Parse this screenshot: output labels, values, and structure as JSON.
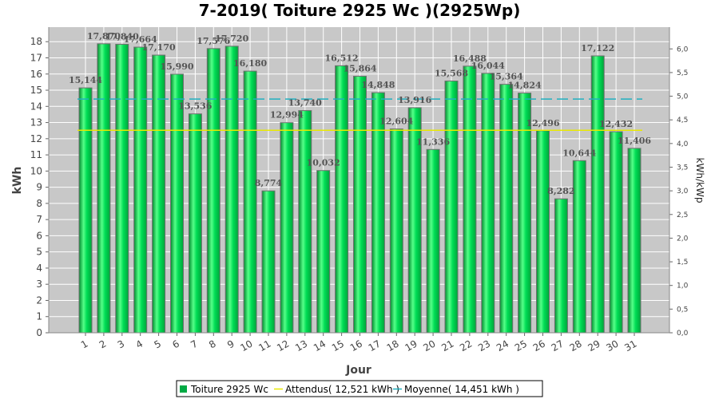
{
  "chart_data": {
    "type": "bar",
    "title": "7-2019( Toiture 2925 Wc )(2925Wp)",
    "xlabel": "Jour",
    "ylabel": "kWh",
    "ylabel_right": "kWh/kWp",
    "categories": [
      "1",
      "2",
      "3",
      "4",
      "5",
      "6",
      "7",
      "8",
      "9",
      "10",
      "11",
      "12",
      "13",
      "14",
      "15",
      "16",
      "17",
      "18",
      "19",
      "20",
      "21",
      "22",
      "23",
      "24",
      "25",
      "26",
      "27",
      "28",
      "29",
      "30",
      "31"
    ],
    "series": [
      {
        "name": "Toiture 2925 Wc",
        "color": "#00cc44",
        "values": [
          15.144,
          17.87,
          17.84,
          17.664,
          17.17,
          15.99,
          13.536,
          17.576,
          17.72,
          16.18,
          8.774,
          12.994,
          13.74,
          10.032,
          16.512,
          15.864,
          14.848,
          12.604,
          13.916,
          11.336,
          15.568,
          16.488,
          16.044,
          15.364,
          14.824,
          12.496,
          8.282,
          10.644,
          17.122,
          12.432,
          11.406
        ]
      }
    ],
    "data_labels": [
      "15,144",
      "17,870",
      "17,840",
      "17,664",
      "17,170",
      "15,990",
      "13,536",
      "17,576",
      "17,720",
      "16,180",
      "8,774",
      "12,994",
      "13,740",
      "10,032",
      "16,512",
      "15,864",
      "14,848",
      "12,604",
      "13,916",
      "11,336",
      "15,568",
      "16,488",
      "16,044",
      "15,364",
      "14,824",
      "12,496",
      "8,282",
      "10,644",
      "17,122",
      "12,432",
      "11,406"
    ],
    "lines": [
      {
        "name": "Attendus( 12,521 kWh )",
        "value": 12.521,
        "color": "#e8e800",
        "style": "solid"
      },
      {
        "name": "Moyenne( 14,451 kWh )",
        "value": 14.451,
        "color": "#20b0c0",
        "style": "dashed"
      }
    ],
    "ylim": [
      0,
      18.9
    ],
    "yticks": [
      "0",
      "1",
      "2",
      "3",
      "4",
      "5",
      "6",
      "7",
      "8",
      "9",
      "10",
      "11",
      "12",
      "13",
      "14",
      "15",
      "16",
      "17",
      "18"
    ],
    "ylim_right": [
      0,
      6.46
    ],
    "yticks_right": [
      "0,0",
      "0,5",
      "1,0",
      "1,5",
      "2,0",
      "2,5",
      "3,0",
      "3,5",
      "4,0",
      "4,5",
      "5,0",
      "5,5",
      "6,0"
    ],
    "grid": true,
    "legend": "bottom",
    "legend_items": [
      {
        "label": "Toiture 2925 Wc",
        "color": "#00aa44",
        "marker": "square"
      },
      {
        "label": "Attendus( 12,521 kWh )",
        "color": "#e8e800",
        "marker": "line"
      },
      {
        "label": "Moyenne( 14,451 kWh )",
        "color": "#20b0c0",
        "marker": "line"
      }
    ],
    "plot_background": "#c8c8c8"
  }
}
